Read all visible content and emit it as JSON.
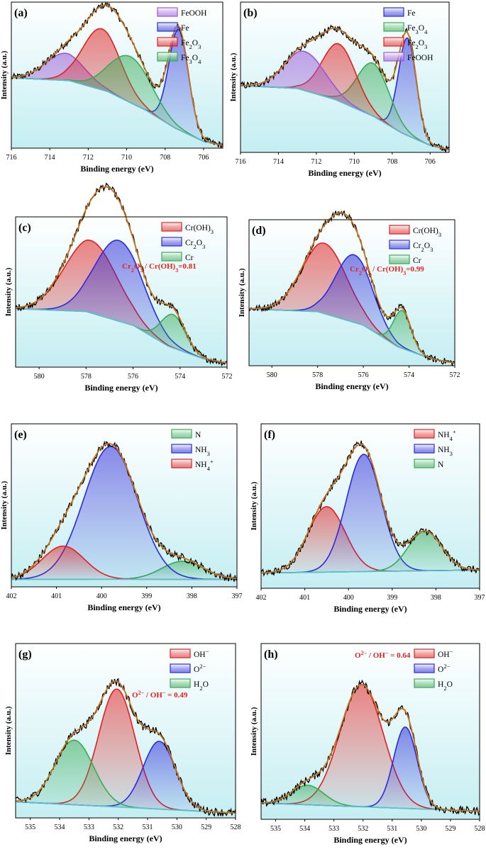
{
  "colors": {
    "FeOOH": "#9b59d6",
    "Fe": "#2b2bd8",
    "Fe2O3": "#e02020",
    "Fe3O4": "#3aaa55",
    "CrOH3": "#e02020",
    "Cr2O3": "#2b2bd8",
    "Cr": "#3aaa55",
    "N": "#3aaa55",
    "NH3": "#2b2bd8",
    "NH4": "#e02020",
    "OH": "#e02020",
    "O2": "#2b2bd8",
    "H2O": "#3aaa55",
    "raw": "#000000",
    "envelope": "#c8741e",
    "baseline": "#5bc0d0"
  },
  "chart_data": [
    {
      "id": "a",
      "label": "(a)",
      "type": "line",
      "xlabel": "Binding energy (eV)",
      "ylabel": "Intensity (a.u.)",
      "xlim": [
        716,
        705
      ],
      "xticks": [
        "716",
        "714",
        "712",
        "710",
        "708",
        "706"
      ],
      "ylim": [
        0,
        1.08
      ],
      "baseline": [
        [
          716,
          0.52
        ],
        [
          713,
          0.5
        ],
        [
          711,
          0.42
        ],
        [
          709,
          0.28
        ],
        [
          707.5,
          0.15
        ],
        [
          706,
          0.05
        ],
        [
          705,
          0.02
        ]
      ],
      "components": [
        {
          "name": "FeOOH",
          "sub": "",
          "color": "FeOOH",
          "center": 713.2,
          "height": 0.2,
          "fwhm": 2.4
        },
        {
          "name": "Fe",
          "sub": "",
          "color": "Fe",
          "center": 707.3,
          "height": 0.74,
          "fwhm": 1.2
        },
        {
          "name": "Fe",
          "sub": "2",
          "tail": "O",
          "sub2": "3",
          "color": "Fe2O3",
          "center": 711.3,
          "height": 0.45,
          "fwhm": 2.3
        },
        {
          "name": "Fe",
          "sub": "3",
          "tail": "O",
          "sub2": "4",
          "color": "Fe3O4",
          "center": 709.8,
          "height": 0.34,
          "fwhm": 2.6
        }
      ],
      "legend_pos": "top-right"
    },
    {
      "id": "b",
      "label": "(b)",
      "type": "line",
      "xlabel": "Binding energy (eV)",
      "ylabel": "Intensity (a.u.)",
      "xlim": [
        716,
        705
      ],
      "xticks": [
        "716",
        "714",
        "712",
        "710",
        "708",
        "706"
      ],
      "ylim": [
        0,
        1.08
      ],
      "baseline": [
        [
          716,
          0.48
        ],
        [
          713,
          0.46
        ],
        [
          711,
          0.38
        ],
        [
          709,
          0.26
        ],
        [
          707.5,
          0.14
        ],
        [
          706,
          0.05
        ],
        [
          705,
          0.02
        ]
      ],
      "components": [
        {
          "name": "Fe",
          "sub": "",
          "color": "Fe",
          "center": 707.2,
          "height": 0.7,
          "fwhm": 1.1
        },
        {
          "name": "Fe",
          "sub": "3",
          "tail": "O",
          "sub2": "4",
          "color": "Fe3O4",
          "center": 709.0,
          "height": 0.38,
          "fwhm": 2.0
        },
        {
          "name": "Fe",
          "sub": "2",
          "tail": "O",
          "sub2": "3",
          "color": "Fe2O3",
          "center": 710.8,
          "height": 0.41,
          "fwhm": 2.1
        },
        {
          "name": "FeOOH",
          "sub": "",
          "color": "FeOOH",
          "center": 712.6,
          "height": 0.28,
          "fwhm": 2.5
        }
      ],
      "legend_pos": "top-right"
    },
    {
      "id": "c",
      "label": "(c)",
      "type": "line",
      "xlabel": "Binding energy (eV)",
      "ylabel": "Intensity (a.u.)",
      "xlim": [
        581,
        572
      ],
      "xticks": [
        "580",
        "578",
        "576",
        "574",
        "572"
      ],
      "ylim": [
        0,
        1.08
      ],
      "annotation": "Cr2O3 / Cr(OH)3=0.81",
      "baseline": [
        [
          581,
          0.42
        ],
        [
          578,
          0.4
        ],
        [
          576,
          0.3
        ],
        [
          574.5,
          0.15
        ],
        [
          573,
          0.06
        ],
        [
          572,
          0.03
        ]
      ],
      "components": [
        {
          "name": "Cr(OH)",
          "sub": "3",
          "color": "CrOH3",
          "center": 577.8,
          "height": 0.52,
          "fwhm": 2.6
        },
        {
          "name": "Cr",
          "sub": "2",
          "tail": "O",
          "sub2": "3",
          "color": "Cr2O3",
          "center": 576.6,
          "height": 0.58,
          "fwhm": 2.4
        },
        {
          "name": "Cr",
          "sub": "",
          "color": "Cr",
          "center": 574.3,
          "height": 0.24,
          "fwhm": 1.2
        }
      ],
      "legend_pos": "top-right"
    },
    {
      "id": "d",
      "label": "(d)",
      "type": "line",
      "xlabel": "Binding energy (eV)",
      "ylabel": "Intensity (a.u.)",
      "xlim": [
        581,
        572
      ],
      "xticks": [
        "580",
        "578",
        "576",
        "574",
        "572"
      ],
      "ylim": [
        0,
        1.08
      ],
      "annotation": "Cr2O3 / Cr(OH)3=0.99",
      "baseline": [
        [
          581,
          0.42
        ],
        [
          578,
          0.4
        ],
        [
          576,
          0.3
        ],
        [
          574.5,
          0.14
        ],
        [
          573,
          0.05
        ],
        [
          572,
          0.02
        ]
      ],
      "components": [
        {
          "name": "Cr(OH)",
          "sub": "3",
          "color": "CrOH3",
          "center": 577.7,
          "height": 0.52,
          "fwhm": 2.3
        },
        {
          "name": "Cr",
          "sub": "2",
          "tail": "O",
          "sub2": "3",
          "color": "Cr2O3",
          "center": 576.4,
          "height": 0.5,
          "fwhm": 1.9
        },
        {
          "name": "Cr",
          "sub": "",
          "color": "Cr",
          "center": 574.3,
          "height": 0.28,
          "fwhm": 0.9
        }
      ],
      "legend_pos": "top-right"
    },
    {
      "id": "e",
      "label": "(e)",
      "type": "line",
      "xlabel": "Binding energy (eV)",
      "ylabel": "Intensity (a.u.)",
      "xlim": [
        402,
        397
      ],
      "xticks": [
        "402",
        "401",
        "400",
        "399",
        "398",
        "397"
      ],
      "ylim": [
        0,
        1.08
      ],
      "baseline": [
        [
          402,
          0.05
        ],
        [
          397,
          0.05
        ]
      ],
      "components": [
        {
          "name": "N",
          "sub": "",
          "color": "N",
          "center": 398.2,
          "height": 0.12,
          "fwhm": 1.1
        },
        {
          "name": "NH",
          "sub": "3",
          "color": "NH3",
          "center": 399.8,
          "height": 0.88,
          "fwhm": 1.4
        },
        {
          "name": "NH",
          "sub": "4",
          "sup": "+",
          "color": "NH4",
          "center": 400.85,
          "height": 0.22,
          "fwhm": 1.1
        }
      ],
      "legend_pos": "top-right"
    },
    {
      "id": "f",
      "label": "(f)",
      "type": "line",
      "xlabel": "Binding energy (eV)",
      "ylabel": "Intensity (a.u.)",
      "xlim": [
        402,
        397
      ],
      "xticks": [
        "402",
        "401",
        "400",
        "399",
        "398",
        "397"
      ],
      "ylim": [
        0,
        1.08
      ],
      "baseline": [
        [
          402,
          0.1
        ],
        [
          397,
          0.12
        ]
      ],
      "components": [
        {
          "name": "NH",
          "sub": "4",
          "sup": "+",
          "color": "NH4",
          "center": 400.5,
          "height": 0.43,
          "fwhm": 1.0
        },
        {
          "name": "NH",
          "sub": "3",
          "color": "NH3",
          "center": 399.65,
          "height": 0.77,
          "fwhm": 0.95
        },
        {
          "name": "N",
          "sub": "",
          "color": "N",
          "center": 398.25,
          "height": 0.26,
          "fwhm": 0.9
        }
      ],
      "legend_pos": "top-right"
    },
    {
      "id": "g",
      "label": "(g)",
      "type": "line",
      "xlabel": "Binding energy (eV)",
      "ylabel": "Intensity (a.u.)",
      "xlim": [
        535.5,
        528
      ],
      "xticks": [
        "535",
        "534",
        "533",
        "532",
        "531",
        "530",
        "529",
        "528"
      ],
      "ylim": [
        0,
        1.08
      ],
      "annotation": "O2- / OH- = 0.49",
      "baseline": [
        [
          535.5,
          0.1
        ],
        [
          528,
          0.03
        ]
      ],
      "components": [
        {
          "name": "OH",
          "sup": "−",
          "color": "OH",
          "center": 532.05,
          "height": 0.73,
          "fwhm": 1.45
        },
        {
          "name": "O",
          "sup": "2−",
          "color": "O2",
          "center": 530.6,
          "height": 0.42,
          "fwhm": 1.3
        },
        {
          "name": "H",
          "sub": "2",
          "tail": "O",
          "color": "H2O",
          "center": 533.5,
          "height": 0.4,
          "fwhm": 1.55
        }
      ],
      "legend_pos": "top-right"
    },
    {
      "id": "h",
      "label": "(h)",
      "type": "line",
      "xlabel": "Binding energy (eV)",
      "ylabel": "Intensity (a.u.)",
      "xlim": [
        535.5,
        528
      ],
      "xticks": [
        "535",
        "534",
        "533",
        "532",
        "531",
        "530",
        "529",
        "528"
      ],
      "ylim": [
        0,
        1.08
      ],
      "annotation": "O2- / OH- = 0.64",
      "baseline": [
        [
          535.5,
          0.1
        ],
        [
          528,
          0.05
        ]
      ],
      "components": [
        {
          "name": "OH",
          "sup": "−",
          "color": "OH",
          "center": 532.05,
          "height": 0.75,
          "fwhm": 1.75
        },
        {
          "name": "O",
          "sup": "2−",
          "color": "O2",
          "center": 530.55,
          "height": 0.5,
          "fwhm": 0.95
        },
        {
          "name": "H",
          "sub": "2",
          "tail": "O",
          "color": "H2O",
          "center": 533.9,
          "height": 0.12,
          "fwhm": 1.3
        }
      ],
      "legend_pos": "top-right"
    }
  ]
}
